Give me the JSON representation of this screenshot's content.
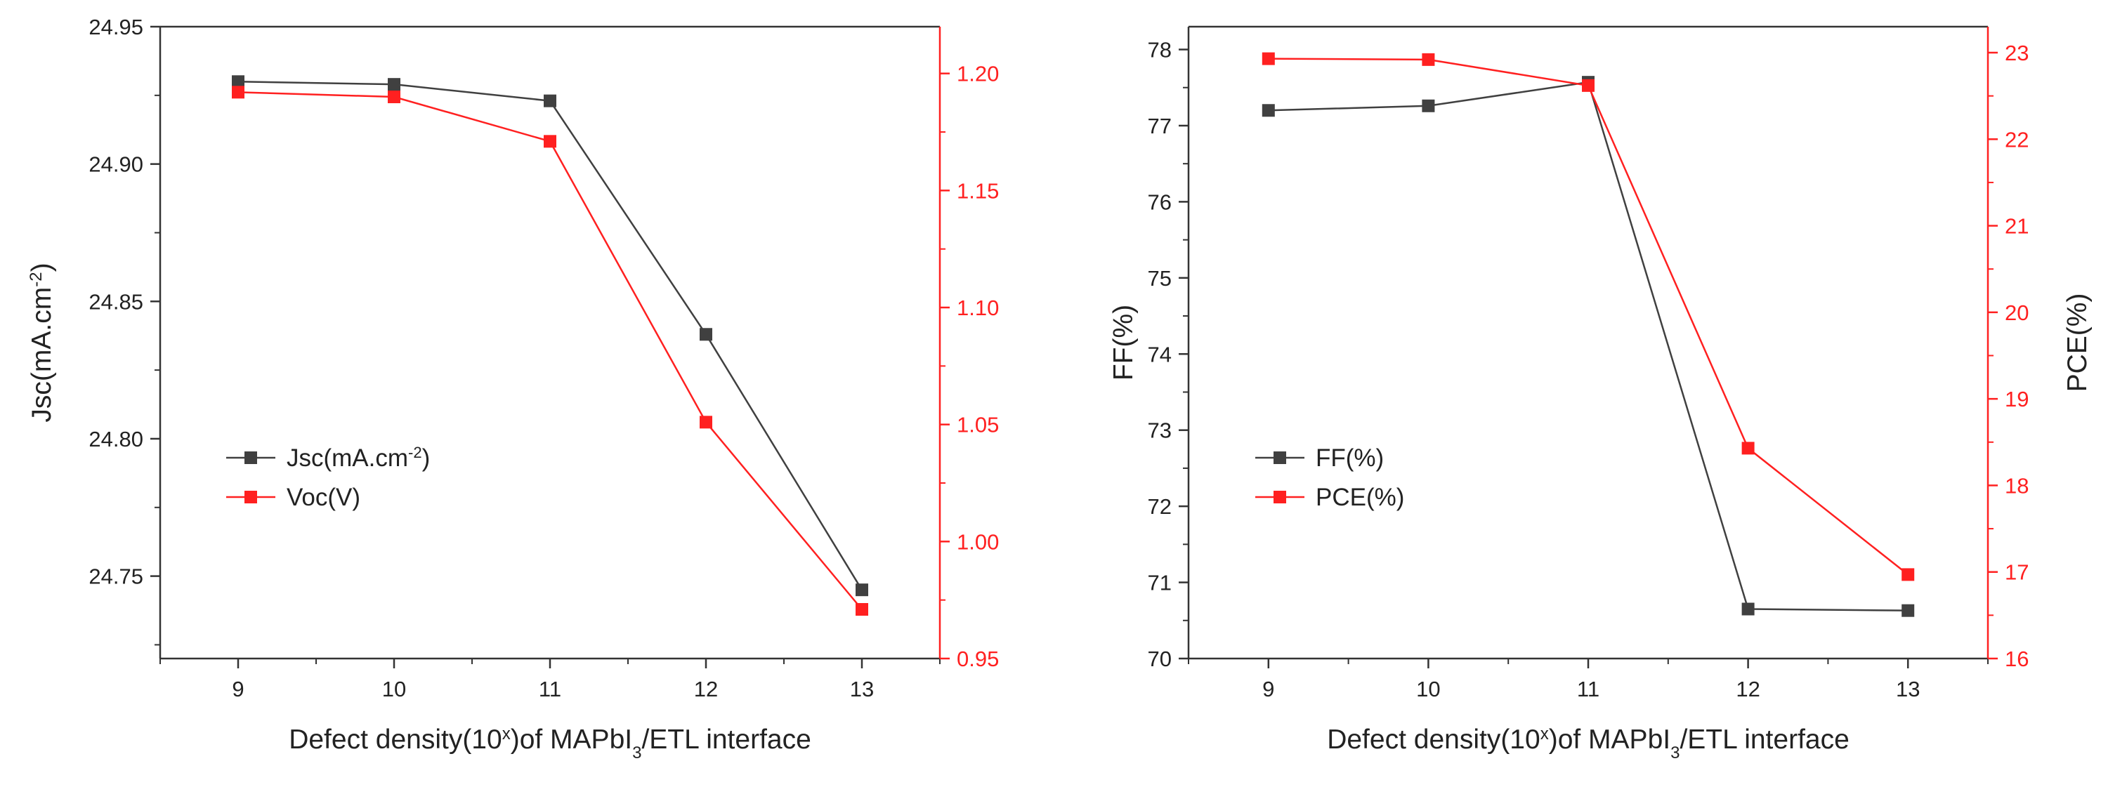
{
  "colors": {
    "black_series": "#404040",
    "red_series": "#ff2020",
    "axis": "#333333"
  },
  "chart_data": [
    {
      "type": "line",
      "panel": "left",
      "x": [
        9,
        10,
        11,
        12,
        13
      ],
      "xlim": [
        8.5,
        13.5
      ],
      "x_ticks": [
        "9",
        "10",
        "11",
        "12",
        "13"
      ],
      "xlabel": {
        "pre": "Defect density(10",
        "sup": "x",
        "mid": ")of MAPbI",
        "sub": "3",
        "post": "/ETL interface"
      },
      "left_axis": {
        "label": {
          "pre": "Jsc(mA.cm",
          "sup": "-2",
          "post": ")"
        },
        "ylim": [
          24.72,
          24.95
        ],
        "ticks": [
          "24.75",
          "24.80",
          "24.85",
          "24.90",
          "24.95"
        ]
      },
      "right_axis": {
        "label": {
          "pre": "",
          "sup": "",
          "post": ""
        },
        "ylim": [
          0.95,
          1.22
        ],
        "ticks": [
          "0.95",
          "1.00",
          "1.05",
          "1.10",
          "1.15",
          "1.20"
        ]
      },
      "series": [
        {
          "name": {
            "pre": "Jsc(mA.cm",
            "sup": "-2",
            "post": ")"
          },
          "axis": "left",
          "color": "#404040",
          "values": [
            24.93,
            24.929,
            24.923,
            24.838,
            24.745
          ]
        },
        {
          "name": {
            "pre": "Voc(V)",
            "sup": "",
            "post": ""
          },
          "axis": "right",
          "color": "#ff2020",
          "values": [
            1.192,
            1.19,
            1.171,
            1.051,
            0.971
          ]
        }
      ],
      "legend_position": "center-left"
    },
    {
      "type": "line",
      "panel": "right",
      "x": [
        9,
        10,
        11,
        12,
        13
      ],
      "xlim": [
        8.5,
        13.5
      ],
      "x_ticks": [
        "9",
        "10",
        "11",
        "12",
        "13"
      ],
      "xlabel": {
        "pre": "Defect density(10",
        "sup": "x",
        "mid": ")of MAPbI",
        "sub": "3",
        "post": "/ETL interface"
      },
      "left_axis": {
        "label": {
          "pre": "FF(%)",
          "sup": "",
          "post": ""
        },
        "ylim": [
          70,
          78.3
        ],
        "ticks": [
          "70",
          "71",
          "72",
          "73",
          "74",
          "75",
          "76",
          "77",
          "78"
        ]
      },
      "right_axis": {
        "label": {
          "pre": "PCE(%)",
          "sup": "",
          "post": ""
        },
        "ylim": [
          16,
          23.3
        ],
        "ticks": [
          "16",
          "17",
          "18",
          "19",
          "20",
          "21",
          "22",
          "23"
        ]
      },
      "series": [
        {
          "name": {
            "pre": "FF(%)",
            "sup": "",
            "post": ""
          },
          "axis": "left",
          "color": "#404040",
          "values": [
            77.2,
            77.26,
            77.57,
            70.65,
            70.63
          ]
        },
        {
          "name": {
            "pre": "PCE(%)",
            "sup": "",
            "post": ""
          },
          "axis": "right",
          "color": "#ff2020",
          "values": [
            22.93,
            22.92,
            22.62,
            18.43,
            16.97
          ]
        }
      ],
      "legend_position": "center-left"
    }
  ]
}
